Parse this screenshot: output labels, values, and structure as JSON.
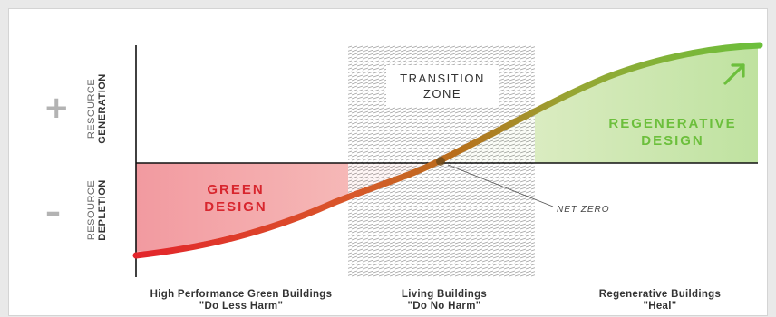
{
  "axis": {
    "positive_sign": "+",
    "negative_sign": "–",
    "top_label_line1": "RESOURCE",
    "top_label_line2": "GENERATION",
    "bottom_label_line1": "RESOURCE",
    "bottom_label_line2": "DEPLETION"
  },
  "zones": {
    "transition_line1": "TRANSITION",
    "transition_line2": "ZONE",
    "green_line1": "GREEN",
    "green_line2": "DESIGN",
    "regenerative_line1": "REGENERATIVE",
    "regenerative_line2": "DESIGN",
    "net_zero": "NET ZERO"
  },
  "captions": [
    {
      "title": "High Performance Green Buildings",
      "subtitle": "\"Do Less Harm\""
    },
    {
      "title": "Living Buildings",
      "subtitle": "\"Do No Harm\""
    },
    {
      "title": "Regenerative Buildings",
      "subtitle": "\"Heal\""
    }
  ],
  "colors": {
    "green_region": "#f3a4a8",
    "regenerative_region": "#c9e6ad",
    "curve_start": "#e3242b",
    "curve_mid": "#c8741c",
    "curve_end": "#6cbf3c",
    "regenerative_text": "#6cbf3c",
    "green_text": "#d8262e",
    "arrow": "#6cbf3c"
  },
  "icons": [
    "up-right-arrow-icon"
  ]
}
